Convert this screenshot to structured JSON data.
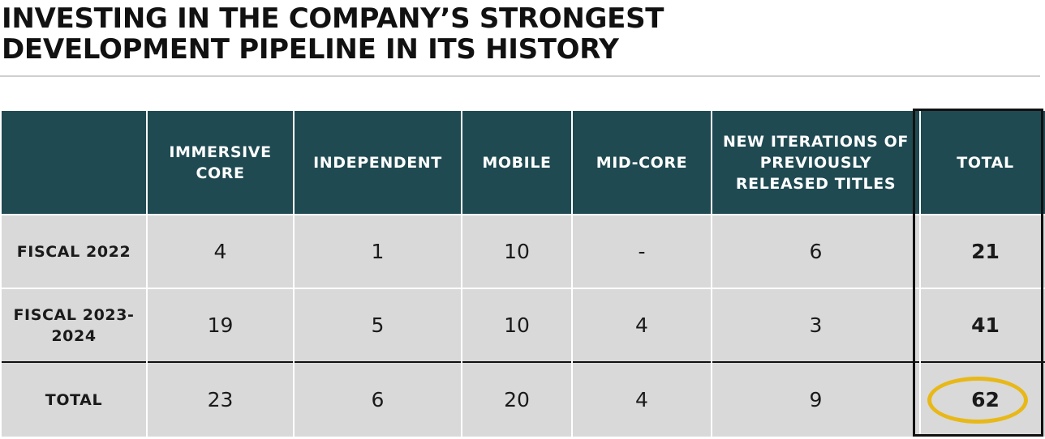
{
  "title": {
    "line1": "INVESTING IN THE COMPANY’S STRONGEST",
    "line2": "DEVELOPMENT PIPELINE IN ITS HISTORY"
  },
  "table": {
    "headers": [
      "",
      "IMMERSIVE CORE",
      "INDEPENDENT",
      "MOBILE",
      "MID-CORE",
      "NEW ITERATIONS OF PREVIOUSLY RELEASED TITLES",
      "TOTAL"
    ],
    "rows": [
      {
        "label": "FISCAL 2022",
        "values": [
          "4",
          "1",
          "10",
          "-",
          "6"
        ],
        "total": "21"
      },
      {
        "label": "FISCAL 2023-2024",
        "values": [
          "19",
          "5",
          "10",
          "4",
          "3"
        ],
        "total": "41"
      },
      {
        "label": "TOTAL",
        "values": [
          "23",
          "6",
          "20",
          "4",
          "9"
        ],
        "total": "62"
      }
    ]
  },
  "colors": {
    "header_bg": "#1f4a52",
    "cell_bg": "#d9d9d9",
    "highlight_ring": "#e8b818",
    "outline": "#111111"
  }
}
